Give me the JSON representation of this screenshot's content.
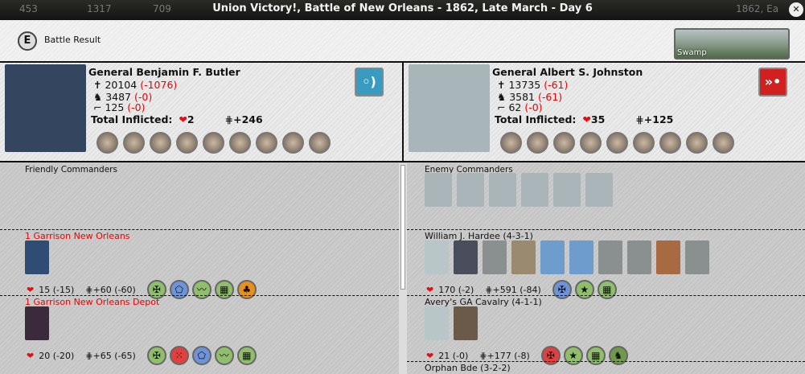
{
  "topbar": {
    "resources": [
      "453",
      "1317",
      "709"
    ],
    "title": "Union Victory!, Battle of New Orleans - 1862, Late March - Day 6",
    "date_right": "1862, Ea",
    "close_icon": "close-icon"
  },
  "header": {
    "e_label": "E",
    "title": "Battle Result",
    "terrain": "Swamp"
  },
  "friendly": {
    "name": "General Benjamin F. Butler",
    "infantry": "20104",
    "infantry_loss": "(-1076)",
    "cavalry": "3487",
    "cavalry_loss": "(-0)",
    "artillery": "125",
    "artillery_loss": "(-0)",
    "inflicted_label": "Total Inflicted:",
    "inflicted_hits": "2",
    "inflicted_cohesion": "+246",
    "button_icon": "retreat-icon",
    "button_color": "#3a9bc0",
    "portrait_color": "#34465f"
  },
  "enemy": {
    "name": "General Albert S. Johnston",
    "infantry": "13735",
    "infantry_loss": "(-61)",
    "cavalry": "3581",
    "cavalry_loss": "(-61)",
    "artillery": "62",
    "artillery_loss": "(-0)",
    "inflicted_label": "Total Inflicted:",
    "inflicted_hits": "35",
    "inflicted_cohesion": "+125",
    "button_icon": "assault-icon",
    "button_color": "#d02020",
    "portrait_color": "#a8b6ba"
  },
  "friendly_commanders_label": "Friendly Commanders",
  "enemy_commanders_label": "Enemy Commanders",
  "enemy_commander_portraits": 6,
  "friendly_units": [
    {
      "title": "1 Garrison New Orleans",
      "hits": "15 (-15)",
      "cohesion": "60 (-60)",
      "portraits": [
        "#2f4c73"
      ],
      "icons": [
        [
          "#8fbf6a",
          "✠"
        ],
        [
          "#6f93d8",
          "⬠"
        ],
        [
          "#8fbf6a",
          "〰"
        ],
        [
          "#8fbf6a",
          "▦"
        ],
        [
          "#e8901e",
          "♣"
        ]
      ]
    },
    {
      "title": "1 Garrison New Orleans Depot",
      "hits": "20 (-20)",
      "cohesion": "65 (-65)",
      "portraits": [
        "#3a2a3c"
      ],
      "icons": [
        [
          "#8fbf6a",
          "✠"
        ],
        [
          "#e04040",
          "⁙"
        ],
        [
          "#6f93d8",
          "⬠"
        ],
        [
          "#8fbf6a",
          "〰"
        ],
        [
          "#8fbf6a",
          "▦"
        ]
      ]
    }
  ],
  "enemy_units": [
    {
      "title": "William J. Hardee (4-3-1)",
      "hits": "170 (-2)",
      "cohesion": "591 (-84)",
      "portraits": [
        "#b9c6c9",
        "#4a4e5c",
        "#8a8f90",
        "#9a8a70",
        "#6e9ccc",
        "#6e9ccc",
        "#8a8f90",
        "#8a8f90",
        "#a86a40",
        "#8a8f90"
      ],
      "icons": [
        [
          "#6f93d8",
          "✠"
        ],
        [
          "#8fbf6a",
          "★"
        ],
        [
          "#8fbf6a",
          "▦"
        ]
      ]
    },
    {
      "title": "Avery's GA Cavalry (4-1-1)",
      "hits": "21 (-0)",
      "cohesion": "177 (-8)",
      "portraits": [
        "#b9c6c9",
        "#6b5a4a"
      ],
      "icons": [
        [
          "#e04040",
          "✠"
        ],
        [
          "#8fbf6a",
          "★"
        ],
        [
          "#8fbf6a",
          "▦"
        ],
        [
          "#6f9a4a",
          "♞"
        ]
      ]
    },
    {
      "title": "Orphan Bde (3-2-2)",
      "hits": "",
      "cohesion": "",
      "portraits": [],
      "icons": []
    }
  ]
}
